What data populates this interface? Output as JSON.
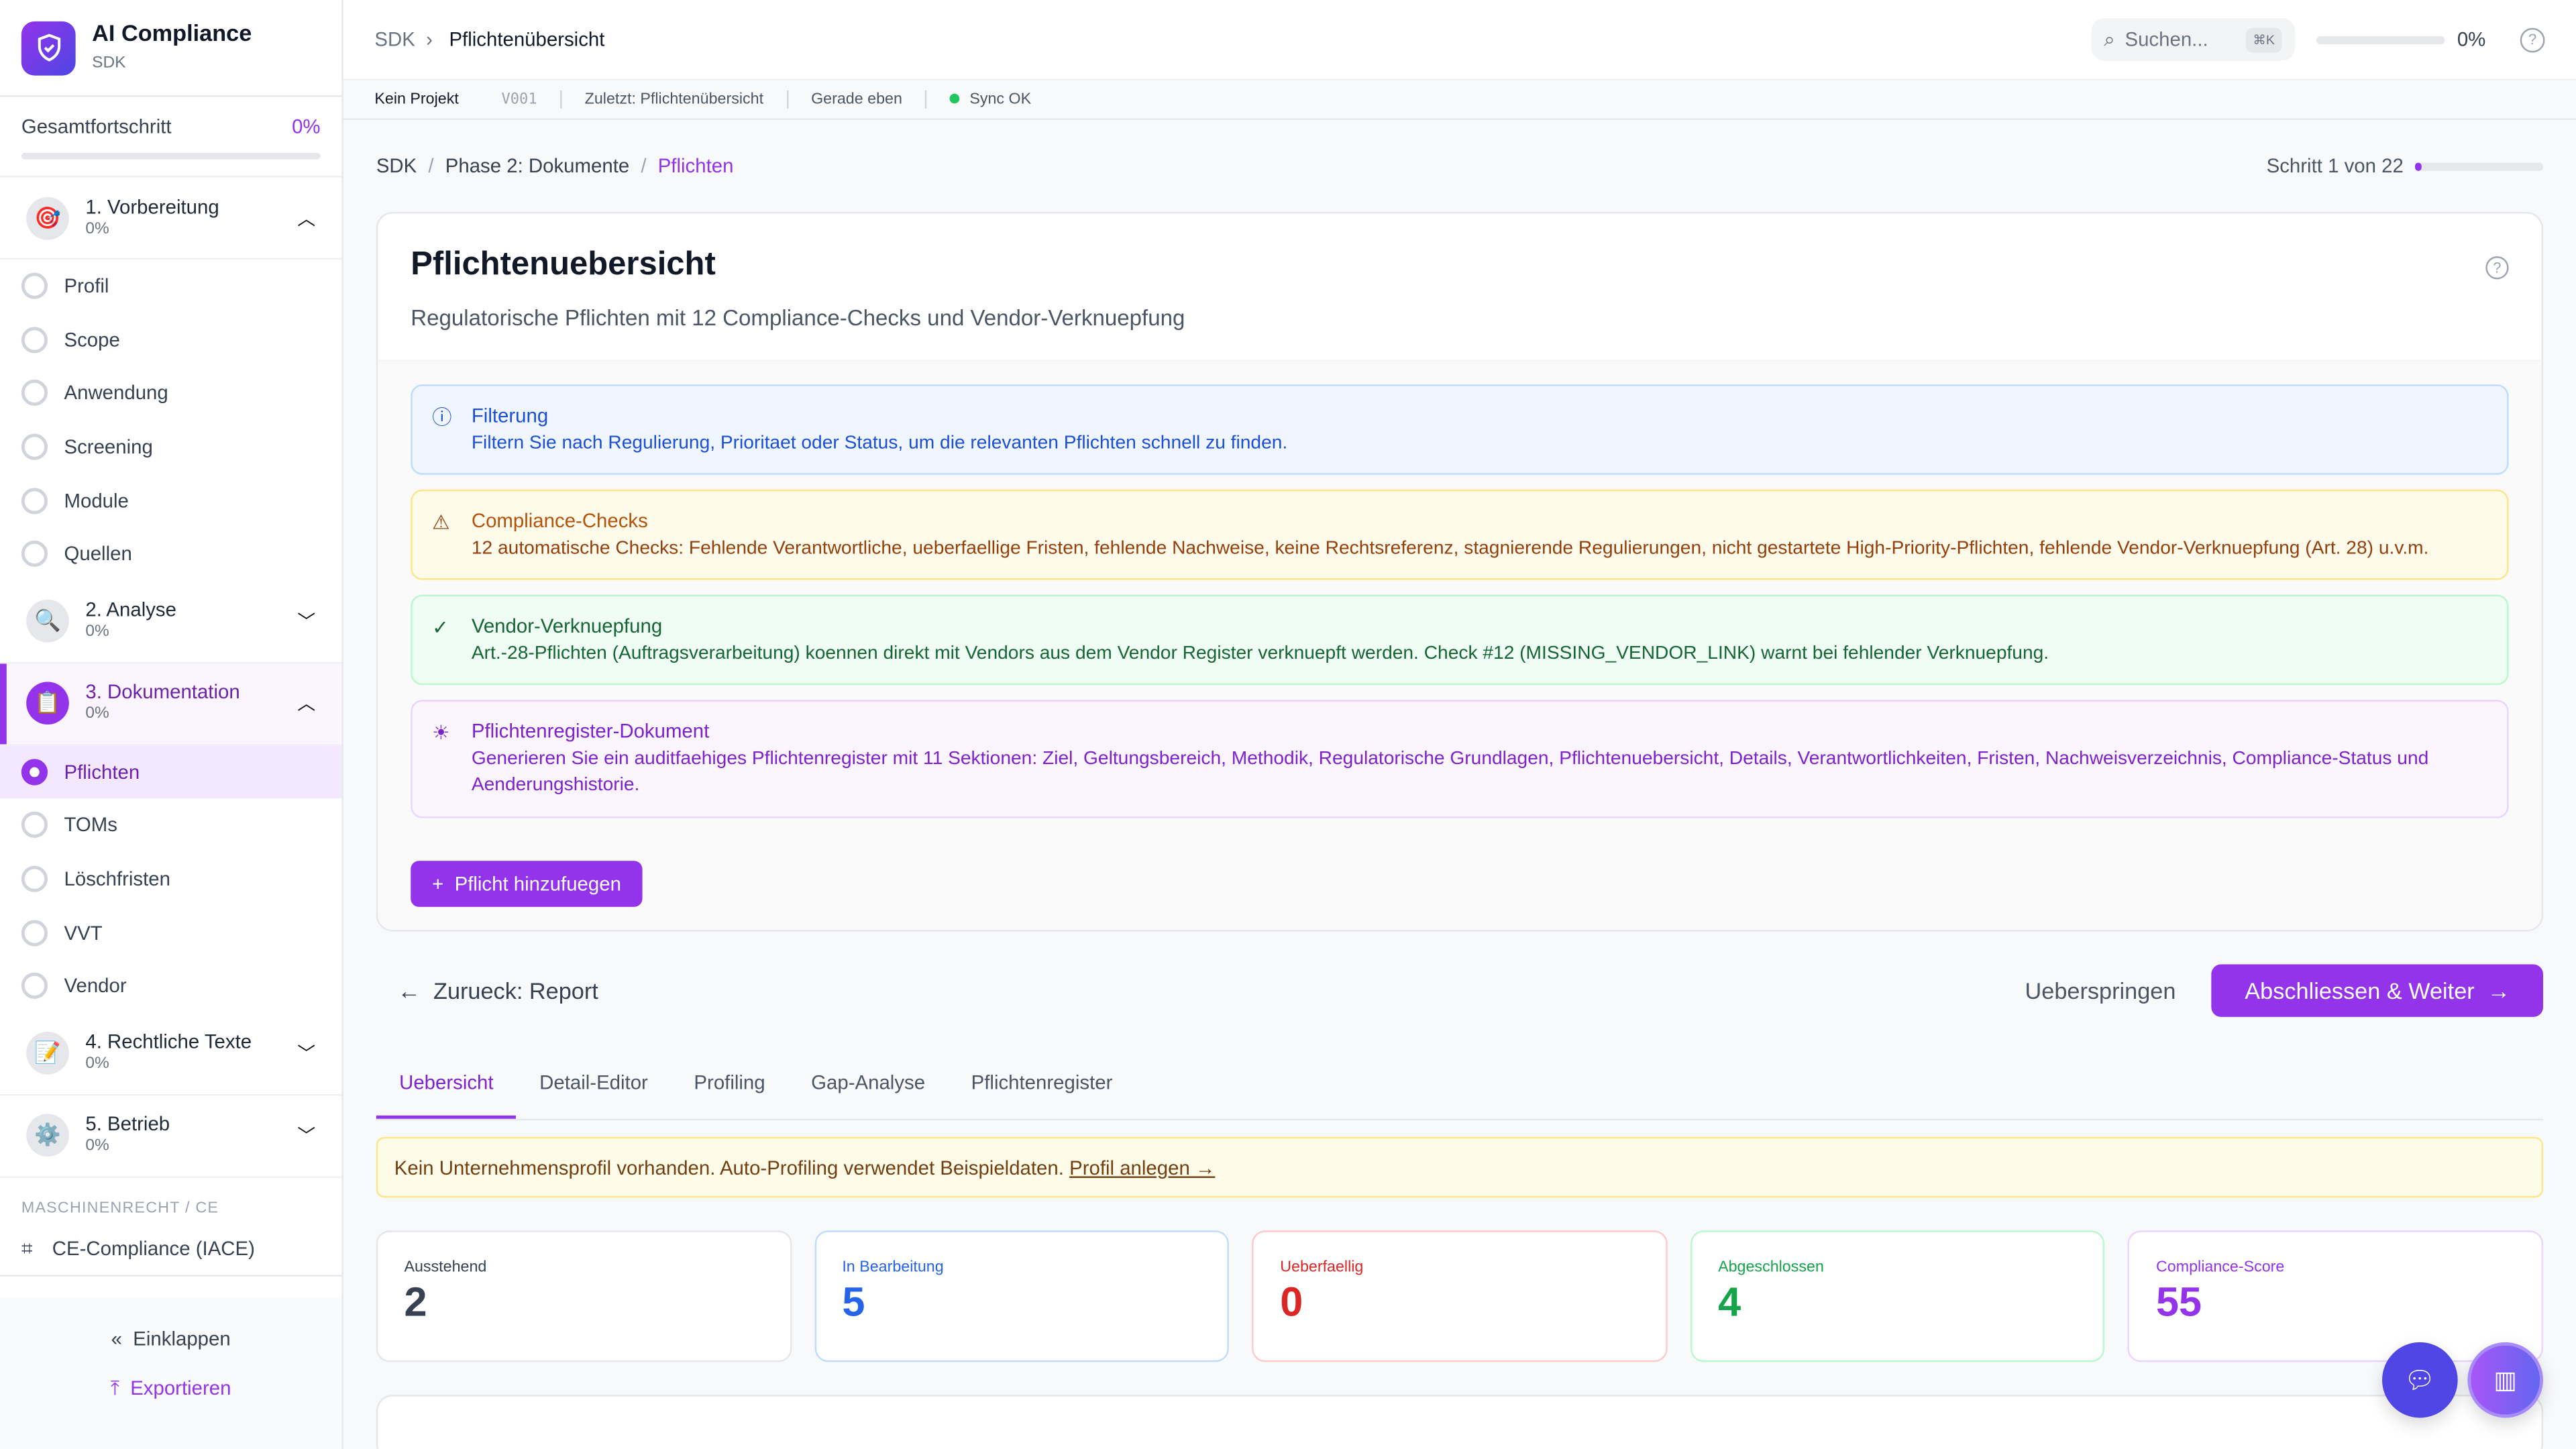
{
  "app": {
    "title": "AI Compliance",
    "subtitle": "SDK"
  },
  "sidebar": {
    "progress_label": "Gesamtfortschritt",
    "progress_value": "0%",
    "progress": 0,
    "phases": [
      {
        "label": "1. Vorbereitung",
        "pct": "0%",
        "icon": "🎯",
        "expanded": true,
        "steps": [
          "Profil",
          "Scope",
          "Anwendung",
          "Screening",
          "Module",
          "Quellen"
        ]
      },
      {
        "label": "2. Analyse",
        "pct": "0%",
        "icon": "🔍",
        "expanded": false
      },
      {
        "label": "3. Dokumentation",
        "pct": "0%",
        "icon": "📋",
        "expanded": true,
        "active": true,
        "steps": [
          "Pflichten",
          "TOMs",
          "Löschfristen",
          "VVT",
          "Vendor"
        ]
      },
      {
        "label": "4. Rechtliche Texte",
        "pct": "0%",
        "icon": "📝",
        "expanded": false
      },
      {
        "label": "5. Betrieb",
        "pct": "0%",
        "icon": "⚙️",
        "expanded": false
      }
    ],
    "section": "MASCHINENRECHT / CE",
    "ce_item": "CE-Compliance (IACE)",
    "collapse": "Einklappen",
    "export": "Exportieren"
  },
  "header": {
    "crumb_root": "SDK",
    "crumb_page": "Pflichtenübersicht",
    "search_placeholder": "Suchen...",
    "search_shortcut": "⌘K",
    "progress_value": "0%",
    "progress": 0
  },
  "statusbar": {
    "project": "Kein Projekt",
    "version": "V001",
    "last": "Zuletzt: Pflichtenübersicht",
    "time": "Gerade eben",
    "sync": "Sync OK"
  },
  "breadcrumb": {
    "items": [
      "SDK",
      "Phase 2: Dokumente",
      "Pflichten"
    ],
    "step": "Schritt 1 von 22",
    "step_progress": 0.045
  },
  "card": {
    "title": "Pflichtenuebersicht",
    "subtitle": "Regulatorische Pflichten mit 12 Compliance-Checks und Vendor-Verknuepfung",
    "alerts": [
      {
        "title": "Filterung",
        "text": "Filtern Sie nach Regulierung, Prioritaet oder Status, um die relevanten Pflichten schnell zu finden.",
        "icon": "info-icon"
      },
      {
        "title": "Compliance-Checks",
        "text": "12 automatische Checks: Fehlende Verantwortliche, ueberfaellige Fristen, fehlende Nachweise, keine Rechtsreferenz, stagnierende Regulierungen, nicht gestartete High-Priority-Pflichten, fehlende Vendor-Verknuepfung (Art. 28) u.v.m.",
        "icon": "warning-icon"
      },
      {
        "title": "Vendor-Verknuepfung",
        "text": "Art.-28-Pflichten (Auftragsverarbeitung) koennen direkt mit Vendors aus dem Vendor Register verknuepft werden. Check #12 (MISSING_VENDOR_LINK) warnt bei fehlender Verknuepfung.",
        "icon": "check-circle-icon"
      },
      {
        "title": "Pflichtenregister-Dokument",
        "text": "Generieren Sie ein auditfaehiges Pflichtenregister mit 11 Sektionen: Ziel, Geltungsbereich, Methodik, Regulatorische Grundlagen, Pflichtenuebersicht, Details, Verantwortlichkeiten, Fristen, Nachweisverzeichnis, Compliance-Status und Aenderungshistorie.",
        "icon": "lightbulb-icon"
      }
    ],
    "add_button": "Pflicht hinzufuegen"
  },
  "nav": {
    "back": "Zurueck: Report",
    "skip": "Ueberspringen",
    "next": "Abschliessen & Weiter"
  },
  "tabs": [
    "Uebersicht",
    "Detail-Editor",
    "Profiling",
    "Gap-Analyse",
    "Pflichtenregister"
  ],
  "banner": {
    "text": "Kein Unternehmensprofil vorhanden. Auto-Profiling verwendet Beispieldaten.",
    "link": "Profil anlegen →"
  },
  "stats": [
    {
      "label": "Ausstehend",
      "value": "2",
      "color": "#374151",
      "border": "#e5e7eb",
      "labelColor": "#374151"
    },
    {
      "label": "In Bearbeitung",
      "value": "5",
      "color": "#2563eb",
      "border": "#bfdbfe",
      "labelColor": "#2563eb"
    },
    {
      "label": "Ueberfaellig",
      "value": "0",
      "color": "#dc2626",
      "border": "#fecaca",
      "labelColor": "#dc2626"
    },
    {
      "label": "Abgeschlossen",
      "value": "4",
      "color": "#16a34a",
      "border": "#bbf7d0",
      "labelColor": "#16a34a"
    },
    {
      "label": "Compliance-Score",
      "value": "55",
      "color": "#9333ea",
      "border": "#e9d5ff",
      "labelColor": "#9333ea"
    }
  ],
  "colors": {
    "accent": "#9333ea",
    "fab_chat": "#4f46e5"
  }
}
